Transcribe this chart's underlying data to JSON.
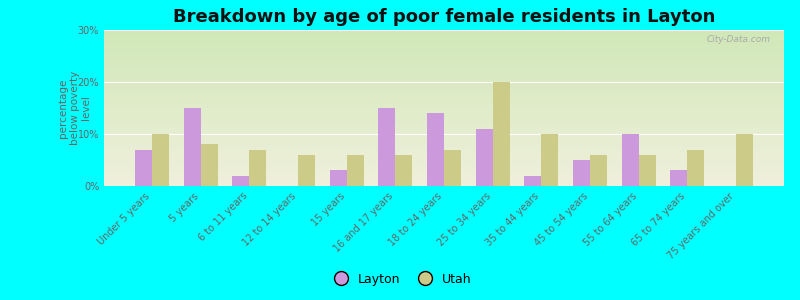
{
  "title": "Breakdown by age of poor female residents in Layton",
  "ylabel": "percentage\nbelow poverty\nlevel",
  "categories": [
    "Under 5 years",
    "5 years",
    "6 to 11 years",
    "12 to 14 years",
    "15 years",
    "16 and 17 years",
    "18 to 24 years",
    "25 to 34 years",
    "35 to 44 years",
    "45 to 54 years",
    "55 to 64 years",
    "65 to 74 years",
    "75 years and over"
  ],
  "layton": [
    7,
    15,
    2,
    0,
    3,
    15,
    14,
    11,
    2,
    5,
    10,
    3,
    0
  ],
  "utah": [
    10,
    8,
    7,
    6,
    6,
    6,
    7,
    20,
    10,
    6,
    6,
    7,
    10
  ],
  "layton_color": "#cc99dd",
  "utah_color": "#cccc88",
  "outer_bg": "#00ffff",
  "ylim": [
    0,
    30
  ],
  "yticks": [
    0,
    10,
    20,
    30
  ],
  "ytick_labels": [
    "0%",
    "10%",
    "20%",
    "30%"
  ],
  "bar_width": 0.35,
  "title_fontsize": 13,
  "axis_label_fontsize": 7.5,
  "tick_fontsize": 7,
  "legend_fontsize": 9
}
